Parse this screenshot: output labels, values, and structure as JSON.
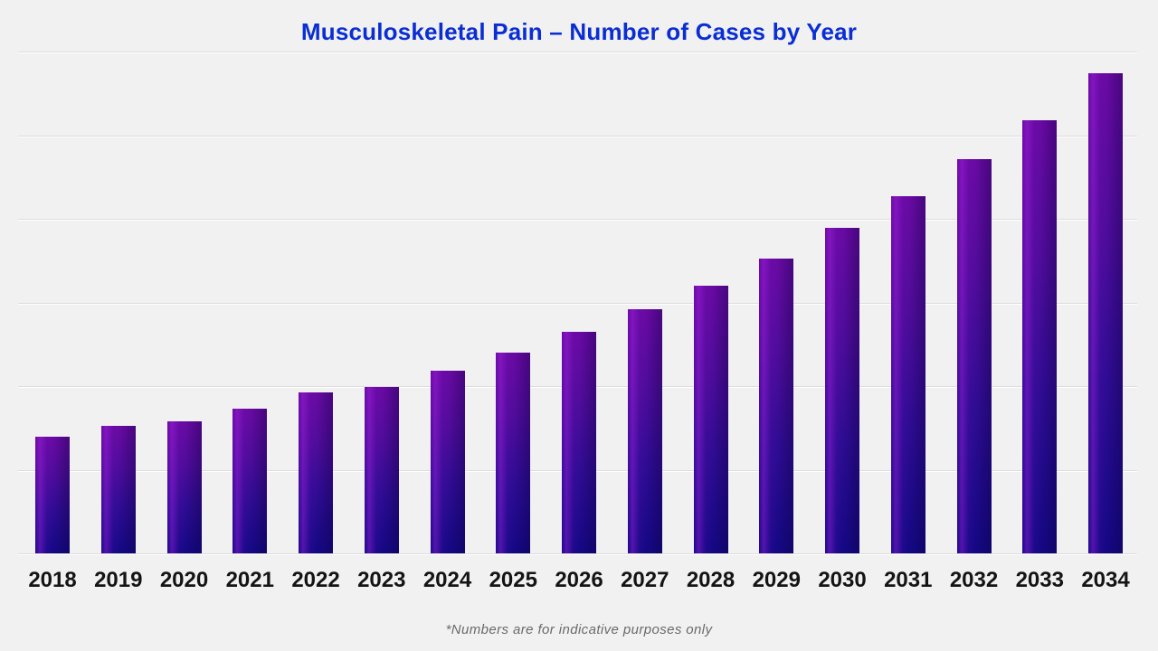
{
  "title": "Musculoskeletal Pain – Number of Cases by Year",
  "footnote": "*Numbers are for indicative purposes only",
  "colors": {
    "title_blue": "#0a2ed3",
    "background": "#f1f1f2",
    "bar_violet_top": "#6a0aa4",
    "bar_navy_bottom": "#140885",
    "bar_highlight": "#aa24e8",
    "gridline": "#dcdcdd",
    "tick_label": "#141414",
    "footnote_gray": "#6a6a6a"
  },
  "chart_data": {
    "type": "bar",
    "title": "Musculoskeletal Pain – Number of Cases by Year",
    "categories": [
      "2018",
      "2019",
      "2020",
      "2021",
      "2022",
      "2023",
      "2024",
      "2025",
      "2026",
      "2027",
      "2028",
      "2029",
      "2030",
      "2031",
      "2032",
      "2033",
      "2034"
    ],
    "values": [
      139,
      153,
      158,
      173,
      192,
      199,
      218,
      240,
      265,
      292,
      320,
      353,
      389,
      427,
      471,
      518,
      574
    ],
    "xlabel": "",
    "ylabel": "",
    "ylim": [
      0,
      600
    ],
    "gridline_interval": 100,
    "grid": true,
    "legend": false,
    "y_axis_labels_visible": false,
    "bar_orientation": "vertical"
  }
}
